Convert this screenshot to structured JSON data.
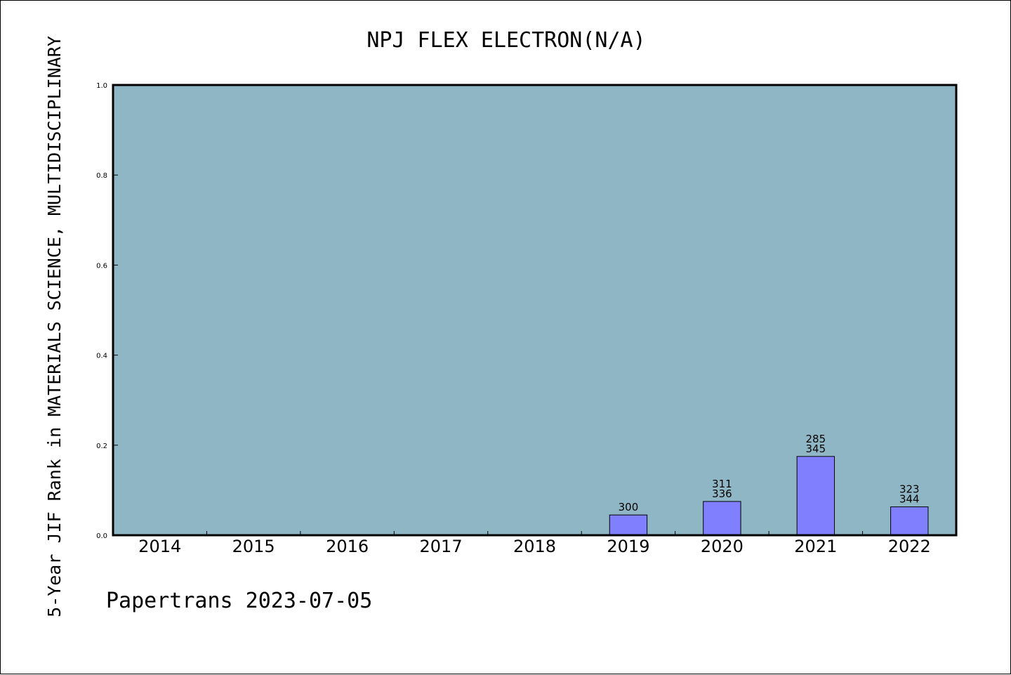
{
  "chart_data": {
    "type": "bar",
    "title": "NPJ FLEX ELECTRON(N/A)",
    "xlabel": "",
    "ylabel": "5-Year JIF Rank in MATERIALS SCIENCE, MULTIDISCIPLINARY",
    "categories": [
      "2014",
      "2015",
      "2016",
      "2017",
      "2018",
      "2019",
      "2020",
      "2021",
      "2022"
    ],
    "values": [
      null,
      null,
      null,
      null,
      null,
      0.045,
      0.075,
      0.175,
      0.063
    ],
    "bar_labels": [
      [],
      [],
      [],
      [],
      [],
      [
        "300"
      ],
      [
        "311",
        "336"
      ],
      [
        "285",
        "345"
      ],
      [
        "323",
        "344"
      ]
    ],
    "ylim": [
      0.0,
      1.0
    ],
    "yticks": [
      "0.0",
      "0.2",
      "0.4",
      "0.6",
      "0.8",
      "1.0"
    ],
    "grid": false,
    "legend": "none",
    "colors": {
      "plot_background": "#8FB6C5",
      "bar_fill": "#8080FF",
      "bar_edge": "#000000",
      "axes_edge": "#000000"
    }
  },
  "footer": {
    "watermark": "Papertrans 2023-07-05"
  }
}
